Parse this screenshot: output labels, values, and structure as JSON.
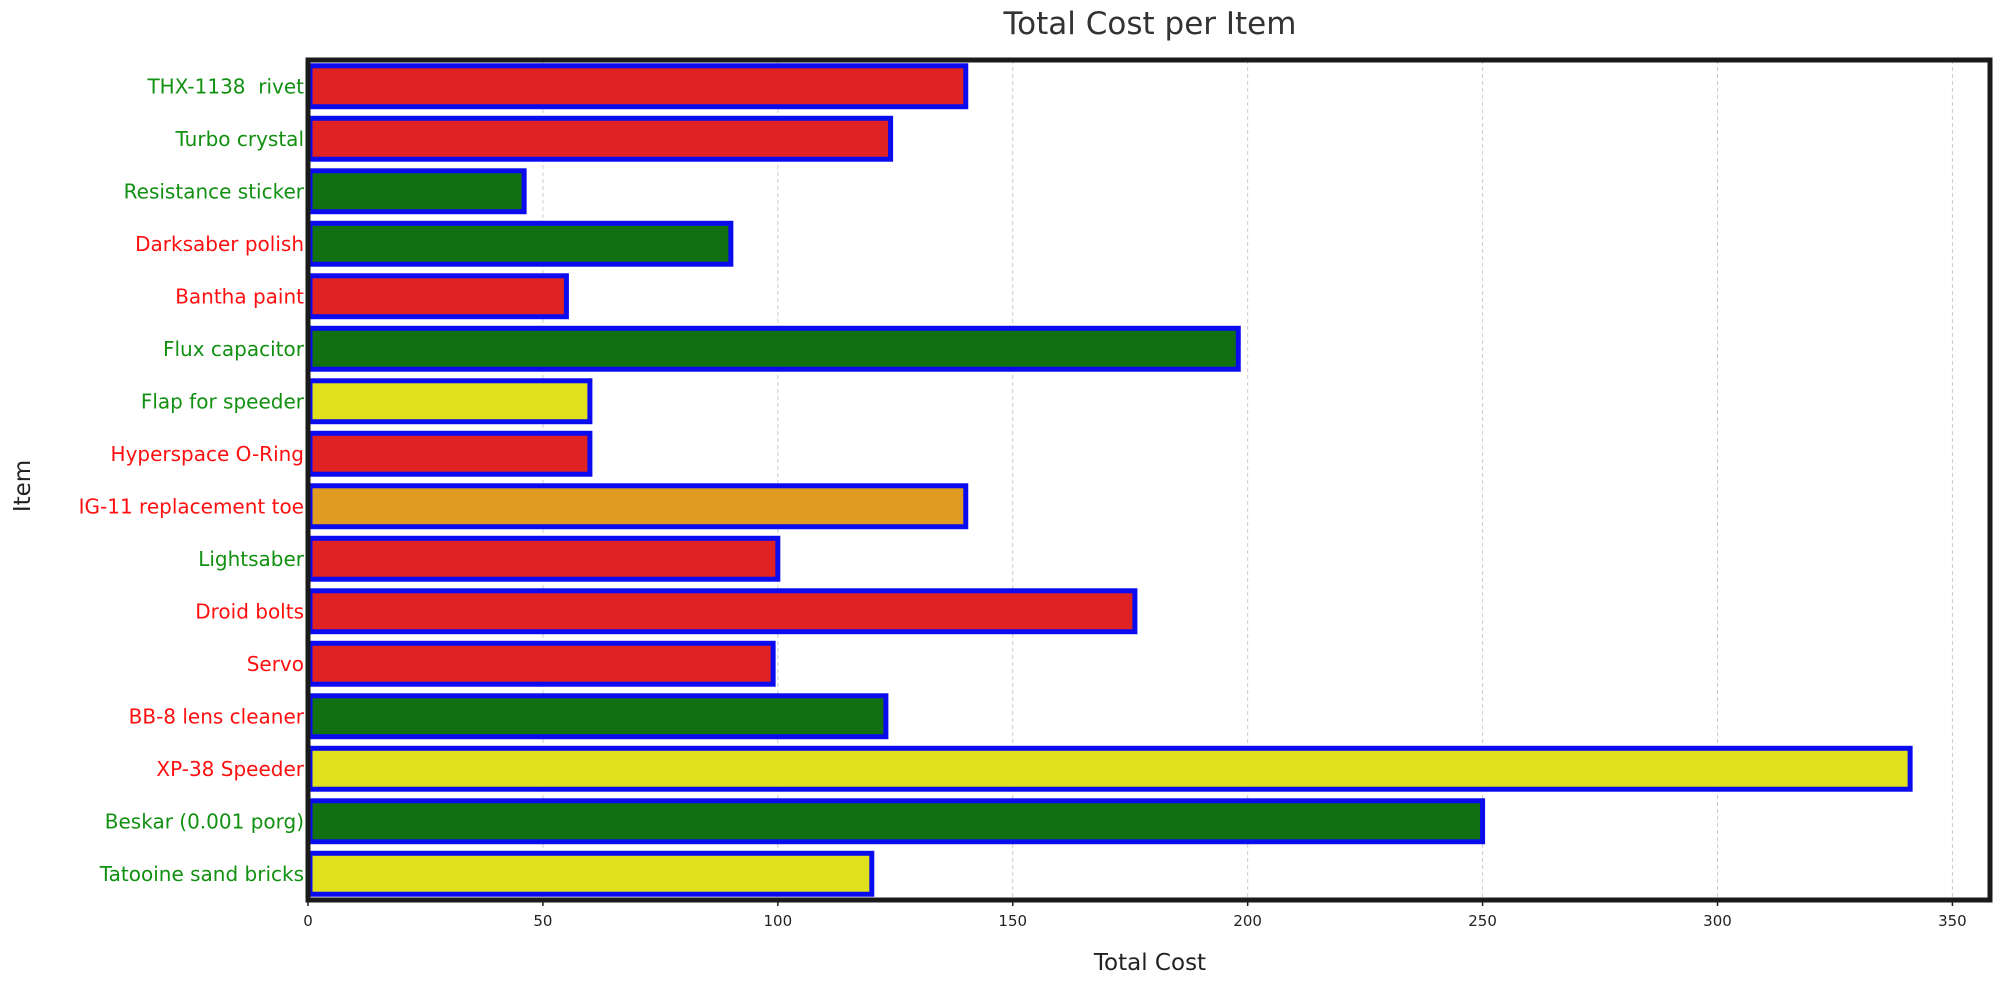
{
  "chart_data": {
    "type": "bar",
    "orientation": "horizontal",
    "title": "Total Cost per Item",
    "xlabel": "Total Cost",
    "ylabel": "Item",
    "xlim": [
      0,
      358
    ],
    "xticks": [
      0,
      50,
      100,
      150,
      200,
      250,
      300,
      350
    ],
    "grid": "x-dashed",
    "bar_edge_color": "#0b0bef",
    "categories": [
      "THX-1138  rivet",
      "Turbo crystal",
      "Resistance sticker",
      "Darksaber polish",
      "Bantha paint",
      "Flux capacitor",
      "Flap for speeder",
      "Hyperspace O-Ring",
      "IG-11 replacement toe",
      "Lightsaber",
      "Droid bolts",
      "Servo",
      "BB-8 lens cleaner",
      "XP-38 Speeder",
      "Beskar (0.001 porg)",
      "Tatooine sand bricks"
    ],
    "values": [
      140,
      124,
      46,
      90,
      55,
      198,
      60,
      60,
      140,
      100,
      176,
      99,
      123,
      341,
      250,
      120
    ],
    "bar_colors": [
      "#e02222",
      "#e02222",
      "#117011",
      "#117011",
      "#e02222",
      "#117011",
      "#e0e01c",
      "#e02222",
      "#e09c22",
      "#e02222",
      "#e02222",
      "#e02222",
      "#117011",
      "#e0e01c",
      "#117011",
      "#e0e01c"
    ],
    "label_colors": [
      "#119011",
      "#119011",
      "#119011",
      "#ff0f0f",
      "#ff0f0f",
      "#119011",
      "#119011",
      "#ff0f0f",
      "#ff0f0f",
      "#119011",
      "#ff0f0f",
      "#ff0f0f",
      "#ff0f0f",
      "#ff0f0f",
      "#119011",
      "#119011"
    ]
  }
}
